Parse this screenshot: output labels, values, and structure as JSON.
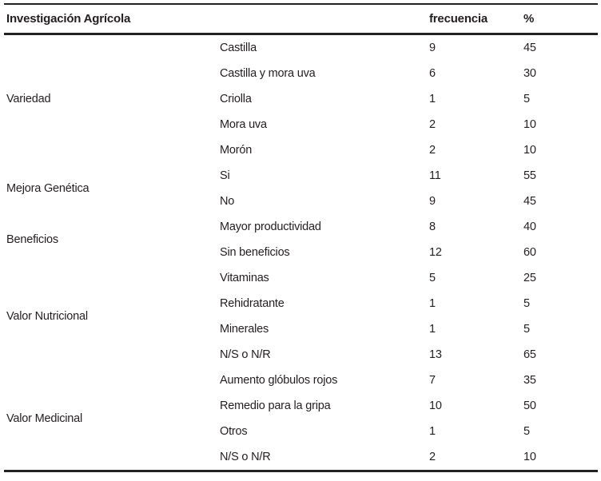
{
  "table": {
    "header": {
      "category": "Investigación Agrícola",
      "frequency": "frecuencia",
      "percent": "%"
    },
    "groups": [
      {
        "label": "Variedad",
        "rows": [
          {
            "item": "Castilla",
            "f": "9",
            "p": "45"
          },
          {
            "item": "Castilla y mora uva",
            "f": "6",
            "p": "30"
          },
          {
            "item": "Criolla",
            "f": "1",
            "p": "5"
          },
          {
            "item": "Mora uva",
            "f": "2",
            "p": "10"
          },
          {
            "item": "Morón",
            "f": "2",
            "p": "10"
          }
        ]
      },
      {
        "label": "Mejora Genética",
        "rows": [
          {
            "item": "Si",
            "f": "11",
            "p": "55"
          },
          {
            "item": "No",
            "f": "9",
            "p": "45"
          }
        ]
      },
      {
        "label": "Beneficios",
        "rows": [
          {
            "item": "Mayor productividad",
            "f": "8",
            "p": "40"
          },
          {
            "item": "Sin beneficios",
            "f": "12",
            "p": "60"
          }
        ]
      },
      {
        "label": "Valor Nutricional",
        "rows": [
          {
            "item": "Vitaminas",
            "f": "5",
            "p": "25"
          },
          {
            "item": "Rehidratante",
            "f": "1",
            "p": "5"
          },
          {
            "item": "Minerales",
            "f": "1",
            "p": "5"
          },
          {
            "item": "N/S o N/R",
            "f": "13",
            "p": "65"
          }
        ]
      },
      {
        "label": "Valor Medicinal",
        "rows": [
          {
            "item": "Aumento glóbulos rojos",
            "f": "7",
            "p": "35"
          },
          {
            "item": "Remedio para la gripa",
            "f": "10",
            "p": "50"
          },
          {
            "item": "Otros",
            "f": "1",
            "p": "5"
          },
          {
            "item": "N/S o N/R",
            "f": "2",
            "p": "10"
          }
        ]
      }
    ]
  }
}
